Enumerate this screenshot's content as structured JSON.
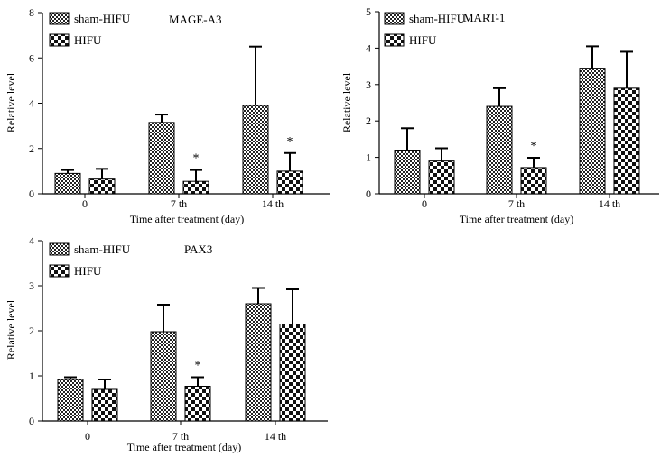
{
  "chart_data": [
    {
      "type": "bar",
      "title": "MAGE-A3",
      "xlabel": "Time after treatment (day)",
      "ylabel": "Relative level",
      "ylim": [
        0,
        8
      ],
      "yticks": [
        0,
        2,
        4,
        6,
        8
      ],
      "categories": [
        "0",
        "7 th",
        "14 th"
      ],
      "legend": "top-left",
      "series": [
        {
          "name": "sham-HIFU",
          "pattern": "checker-fine",
          "values": [
            0.9,
            3.15,
            3.9
          ],
          "errors": [
            0.15,
            0.35,
            2.6
          ]
        },
        {
          "name": "HIFU",
          "pattern": "checker-coarse",
          "values": [
            0.65,
            0.55,
            1.0
          ],
          "errors": [
            0.45,
            0.5,
            0.8
          ]
        }
      ],
      "annotations": [
        {
          "category": 1,
          "series": 1,
          "text": "*"
        },
        {
          "category": 2,
          "series": 1,
          "text": "*"
        }
      ]
    },
    {
      "type": "bar",
      "title": "MART-1",
      "xlabel": "Time after treatment (day)",
      "ylabel": "Relative level",
      "ylim": [
        0,
        5
      ],
      "yticks": [
        0,
        1,
        2,
        3,
        4,
        5
      ],
      "categories": [
        "0",
        "7 th",
        "14 th"
      ],
      "legend": "top-left",
      "series": [
        {
          "name": "sham-HIFU",
          "pattern": "checker-fine",
          "values": [
            1.2,
            2.4,
            3.45
          ],
          "errors": [
            0.6,
            0.5,
            0.6
          ]
        },
        {
          "name": "HIFU",
          "pattern": "checker-coarse",
          "values": [
            0.9,
            0.72,
            2.9
          ],
          "errors": [
            0.35,
            0.27,
            1.0
          ]
        }
      ],
      "annotations": [
        {
          "category": 1,
          "series": 1,
          "text": "*"
        }
      ]
    },
    {
      "type": "bar",
      "title": "PAX3",
      "xlabel": "Time after treatment (day)",
      "ylabel": "Relative level",
      "ylim": [
        0,
        4
      ],
      "yticks": [
        0,
        1,
        2,
        3,
        4
      ],
      "categories": [
        "0",
        "7 th",
        "14 th"
      ],
      "legend": "top-left",
      "series": [
        {
          "name": "sham-HIFU",
          "pattern": "checker-fine",
          "values": [
            0.92,
            1.98,
            2.6
          ],
          "errors": [
            0.05,
            0.6,
            0.35
          ]
        },
        {
          "name": "HIFU",
          "pattern": "checker-coarse",
          "values": [
            0.7,
            0.77,
            2.15
          ],
          "errors": [
            0.22,
            0.2,
            0.77
          ]
        }
      ],
      "annotations": [
        {
          "category": 1,
          "series": 1,
          "text": "*"
        }
      ]
    }
  ]
}
